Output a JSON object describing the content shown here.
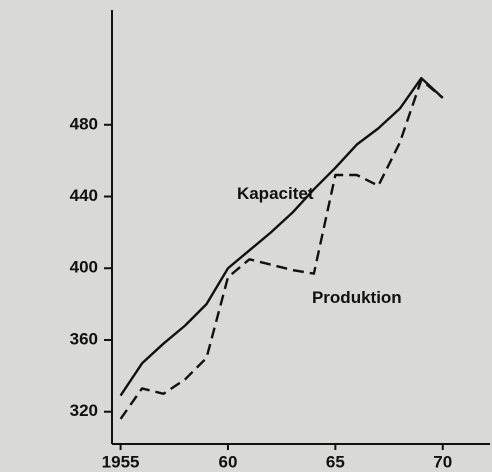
{
  "chart_data": {
    "type": "line",
    "x": [
      1955,
      1956,
      1957,
      1958,
      1959,
      1960,
      1961,
      1962,
      1963,
      1964,
      1965,
      1966,
      1967,
      1968,
      1969,
      1970
    ],
    "series": [
      {
        "name": "Kapacitet",
        "color": "#111111",
        "dash": false,
        "values": [
          329,
          347,
          358,
          368,
          380,
          400,
          410,
          420,
          431,
          444,
          456,
          469,
          478,
          489,
          506,
          495
        ]
      },
      {
        "name": "Produktion",
        "color": "#111111",
        "dash": true,
        "values": [
          316,
          333,
          330,
          338,
          350,
          395,
          405,
          402,
          399,
          397,
          452,
          452,
          446,
          470,
          505,
          495
        ]
      }
    ],
    "xlim": [
      1954.6,
      1972.2
    ],
    "ylim": [
      302,
      544
    ],
    "xticks": [
      1955,
      {
        "value": 1960,
        "label": "60"
      },
      {
        "value": 1965,
        "label": "65"
      },
      {
        "value": 1970,
        "label": "70"
      }
    ],
    "yticks": [
      320,
      360,
      400,
      440,
      480
    ],
    "annotations": [
      {
        "text": "Kapacitet",
        "x": 1962.2,
        "y": 441
      },
      {
        "text": "Produktion",
        "x": 1966,
        "y": 383
      }
    ]
  }
}
